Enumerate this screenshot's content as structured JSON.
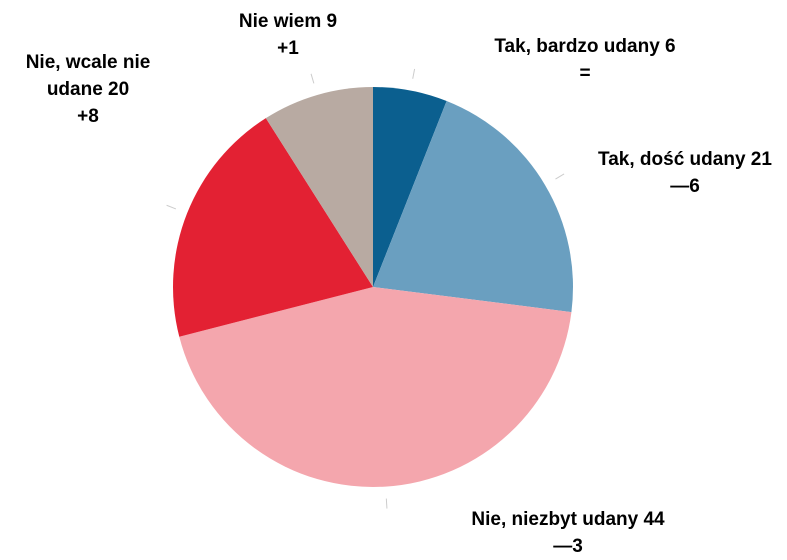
{
  "chart_data": {
    "type": "pie",
    "categories": [
      "Tak, bardzo udany",
      "Tak, dość udany",
      "Nie, niezbyt udany",
      "Nie, wcale nie udane",
      "Nie wiem"
    ],
    "values": [
      6,
      21,
      44,
      20,
      9
    ],
    "changes": [
      "=",
      "—6",
      "—3",
      "+8",
      "+1"
    ],
    "colors": [
      "#0b5f8f",
      "#6a9fc0",
      "#f4a6ad",
      "#e32133",
      "#b8aaa2"
    ]
  }
}
